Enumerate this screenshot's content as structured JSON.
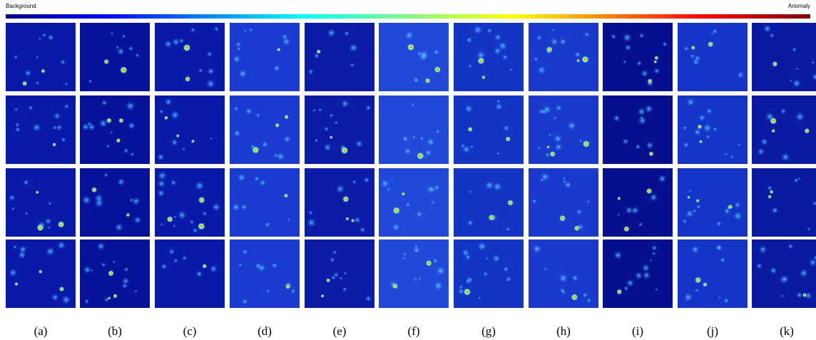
{
  "colorbar": {
    "min_label": "Background",
    "max_label": "Anomaly"
  },
  "panels": {
    "labels": [
      "(a)",
      "(b)",
      "(c)",
      "(d)",
      "(e)",
      "(f)",
      "(g)",
      "(h)",
      "(i)",
      "(j)",
      "(k)"
    ]
  }
}
